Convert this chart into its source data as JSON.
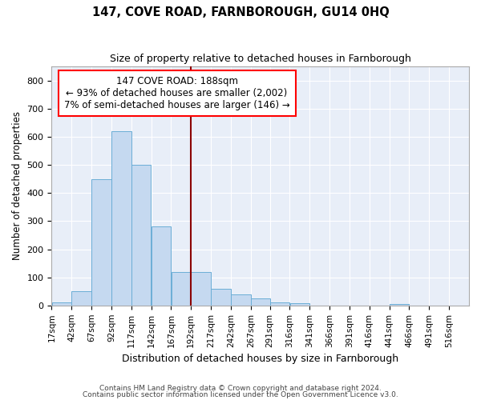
{
  "title": "147, COVE ROAD, FARNBOROUGH, GU14 0HQ",
  "subtitle": "Size of property relative to detached houses in Farnborough",
  "xlabel": "Distribution of detached houses by size in Farnborough",
  "ylabel": "Number of detached properties",
  "footnote1": "Contains HM Land Registry data © Crown copyright and database right 2024.",
  "footnote2": "Contains public sector information licensed under the Open Government Licence v3.0.",
  "bar_color": "#c5d9f0",
  "bar_edge_color": "#6baed6",
  "background_color": "#e8eef8",
  "grid_color": "#ffffff",
  "red_line_x": 192,
  "annotation_line1": "147 COVE ROAD: 188sqm",
  "annotation_line2": "← 93% of detached houses are smaller (2,002)",
  "annotation_line3": "7% of semi-detached houses are larger (146) →",
  "categories": [
    "17sqm",
    "42sqm",
    "67sqm",
    "92sqm",
    "117sqm",
    "142sqm",
    "167sqm",
    "192sqm",
    "217sqm",
    "242sqm",
    "267sqm",
    "291sqm",
    "316sqm",
    "341sqm",
    "366sqm",
    "391sqm",
    "416sqm",
    "441sqm",
    "466sqm",
    "491sqm",
    "516sqm"
  ],
  "bin_edges": [
    17,
    42,
    67,
    92,
    117,
    142,
    167,
    192,
    217,
    242,
    267,
    291,
    316,
    341,
    366,
    391,
    416,
    441,
    466,
    491,
    516
  ],
  "values": [
    10,
    50,
    450,
    620,
    500,
    280,
    118,
    118,
    60,
    38,
    25,
    10,
    8,
    0,
    0,
    0,
    0,
    5,
    0,
    0,
    0
  ],
  "ylim": [
    0,
    850
  ],
  "yticks": [
    0,
    100,
    200,
    300,
    400,
    500,
    600,
    700,
    800
  ]
}
